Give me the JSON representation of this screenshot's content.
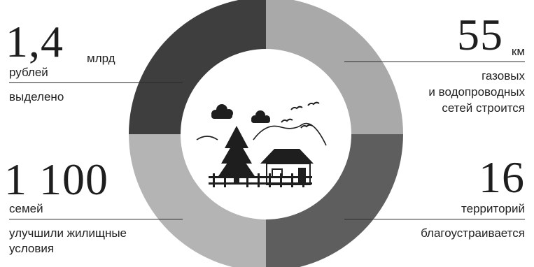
{
  "stats": {
    "top_left": {
      "value": "1,4",
      "unit": "млрд",
      "label_1": "рублей",
      "label_2": "выделено"
    },
    "bottom_left": {
      "value": "1 100",
      "label_1": "семей",
      "label_2": "улучшили жилищные",
      "label_3": "условия"
    },
    "top_right": {
      "value": "55",
      "unit": "км",
      "label_1": "газовых",
      "label_2": "и водопроводных",
      "label_3": "сетей строится"
    },
    "bottom_right": {
      "value": "16",
      "label_1": "территорий",
      "label_2": "благоустраивается"
    }
  },
  "colors": {
    "segment_top_left": "#3e3e3e",
    "segment_top_right": "#a9a9a9",
    "segment_bottom_right": "#5e5e5e",
    "segment_bottom_left": "#b4b4b4",
    "illustration": "#1e1e1e"
  },
  "icons": [
    "clouds-icon",
    "hills-icon",
    "birds-icon",
    "fir-tree-icon",
    "house-icon",
    "fence-icon"
  ]
}
